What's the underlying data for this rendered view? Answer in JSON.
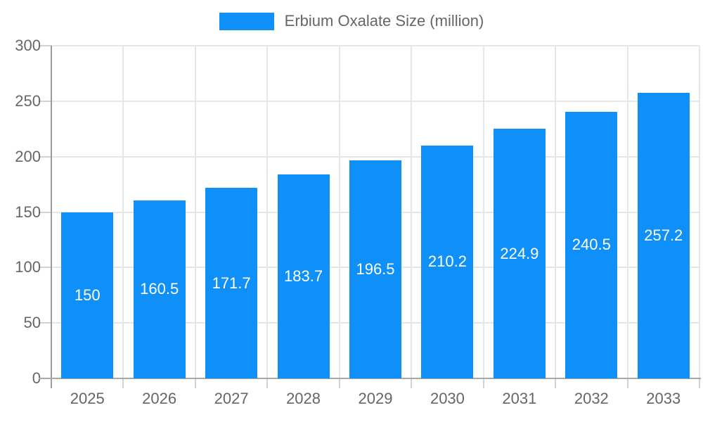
{
  "chart_data": {
    "type": "bar",
    "title": "",
    "legend": "Erbium Oxalate Size (million)",
    "legend_position": "top-center",
    "categories": [
      "2025",
      "2026",
      "2027",
      "2028",
      "2029",
      "2030",
      "2031",
      "2032",
      "2033"
    ],
    "values": [
      150,
      160.5,
      171.7,
      183.7,
      196.5,
      210.2,
      224.9,
      240.5,
      257.2
    ],
    "value_labels": [
      "150",
      "160.5",
      "171.7",
      "183.7",
      "196.5",
      "210.2",
      "224.9",
      "240.5",
      "257.2"
    ],
    "xlabel": "",
    "ylabel": "",
    "ylim": [
      0,
      300
    ],
    "yticks": [
      0,
      50,
      100,
      150,
      200,
      250,
      300
    ],
    "grid": true,
    "colors": {
      "bar": "#0e90f8",
      "gridline": "#e6e6e6",
      "axis_line": "#9b9b9b",
      "baseline": "#a8a8a8",
      "tick_mark": "#d2d2d2",
      "tick_label": "#666666",
      "bar_value_label": "#ffffff",
      "legend_text": "#666666",
      "background": "#ffffff"
    }
  }
}
